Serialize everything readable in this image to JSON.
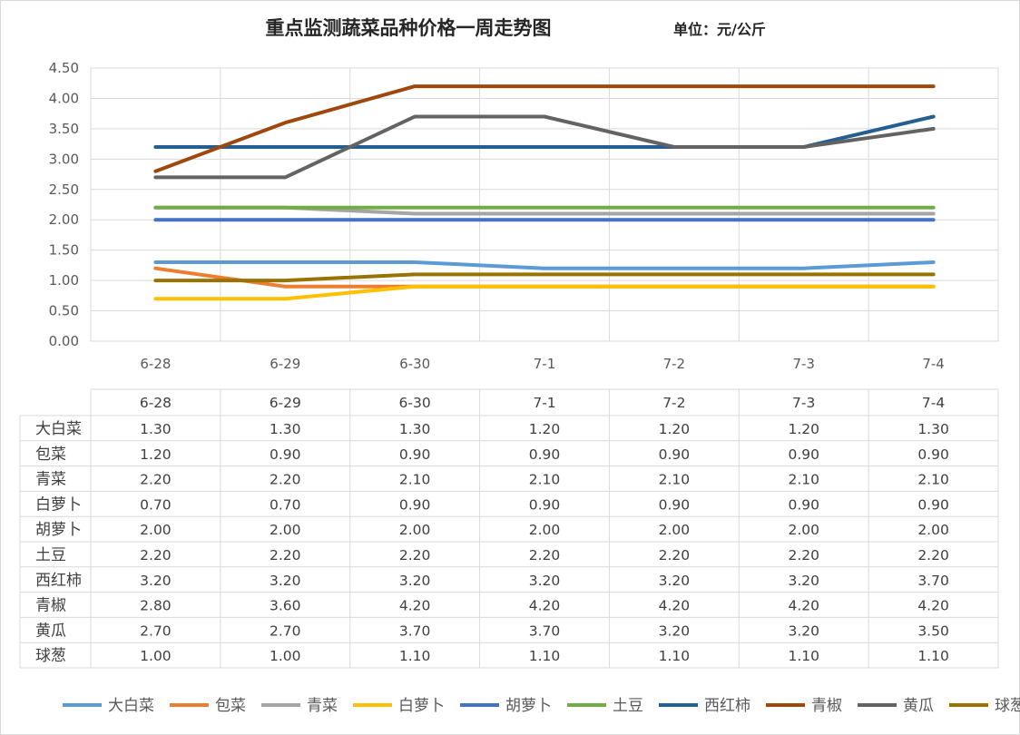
{
  "chart_data": {
    "type": "line",
    "title": "重点监测蔬菜品种价格一周走势图",
    "unit_label": "单位：元/公斤",
    "categories": [
      "6-28",
      "6-29",
      "6-30",
      "7-1",
      "7-2",
      "7-3",
      "7-4"
    ],
    "ylim": [
      0,
      4.5
    ],
    "yticks": [
      "0.00",
      "0.50",
      "1.00",
      "1.50",
      "2.00",
      "2.50",
      "3.00",
      "3.50",
      "4.00",
      "4.50"
    ],
    "grid": true,
    "legend_position": "bottom",
    "data_table": true,
    "series": [
      {
        "name": "大白菜",
        "color": "#5b9bd5",
        "values": [
          1.3,
          1.3,
          1.3,
          1.2,
          1.2,
          1.2,
          1.3
        ],
        "display": [
          "1.30",
          "1.30",
          "1.30",
          "1.20",
          "1.20",
          "1.20",
          "1.30"
        ]
      },
      {
        "name": "包菜",
        "color": "#ed7d31",
        "values": [
          1.2,
          0.9,
          0.9,
          0.9,
          0.9,
          0.9,
          0.9
        ],
        "display": [
          "1.20",
          "0.90",
          "0.90",
          "0.90",
          "0.90",
          "0.90",
          "0.90"
        ]
      },
      {
        "name": "青菜",
        "color": "#a5a5a5",
        "values": [
          2.2,
          2.2,
          2.1,
          2.1,
          2.1,
          2.1,
          2.1
        ],
        "display": [
          "2.20",
          "2.20",
          "2.10",
          "2.10",
          "2.10",
          "2.10",
          "2.10"
        ]
      },
      {
        "name": "白萝卜",
        "color": "#ffc000",
        "values": [
          0.7,
          0.7,
          0.9,
          0.9,
          0.9,
          0.9,
          0.9
        ],
        "display": [
          "0.70",
          "0.70",
          "0.90",
          "0.90",
          "0.90",
          "0.90",
          "0.90"
        ]
      },
      {
        "name": "胡萝卜",
        "color": "#4472c4",
        "values": [
          2.0,
          2.0,
          2.0,
          2.0,
          2.0,
          2.0,
          2.0
        ],
        "display": [
          "2.00",
          "2.00",
          "2.00",
          "2.00",
          "2.00",
          "2.00",
          "2.00"
        ]
      },
      {
        "name": "土豆",
        "color": "#70ad47",
        "values": [
          2.2,
          2.2,
          2.2,
          2.2,
          2.2,
          2.2,
          2.2
        ],
        "display": [
          "2.20",
          "2.20",
          "2.20",
          "2.20",
          "2.20",
          "2.20",
          "2.20"
        ]
      },
      {
        "name": "西红柿",
        "color": "#255e91",
        "values": [
          3.2,
          3.2,
          3.2,
          3.2,
          3.2,
          3.2,
          3.7
        ],
        "display": [
          "3.20",
          "3.20",
          "3.20",
          "3.20",
          "3.20",
          "3.20",
          "3.70"
        ]
      },
      {
        "name": "青椒",
        "color": "#9e480e",
        "values": [
          2.8,
          3.6,
          4.2,
          4.2,
          4.2,
          4.2,
          4.2
        ],
        "display": [
          "2.80",
          "3.60",
          "4.20",
          "4.20",
          "4.20",
          "4.20",
          "4.20"
        ]
      },
      {
        "name": "黄瓜",
        "color": "#636363",
        "values": [
          2.7,
          2.7,
          3.7,
          3.7,
          3.2,
          3.2,
          3.5
        ],
        "display": [
          "2.70",
          "2.70",
          "3.70",
          "3.70",
          "3.20",
          "3.20",
          "3.50"
        ]
      },
      {
        "name": "球葱",
        "color": "#997300",
        "values": [
          1.0,
          1.0,
          1.1,
          1.1,
          1.1,
          1.1,
          1.1
        ],
        "display": [
          "1.00",
          "1.00",
          "1.10",
          "1.10",
          "1.10",
          "1.10",
          "1.10"
        ]
      }
    ]
  }
}
